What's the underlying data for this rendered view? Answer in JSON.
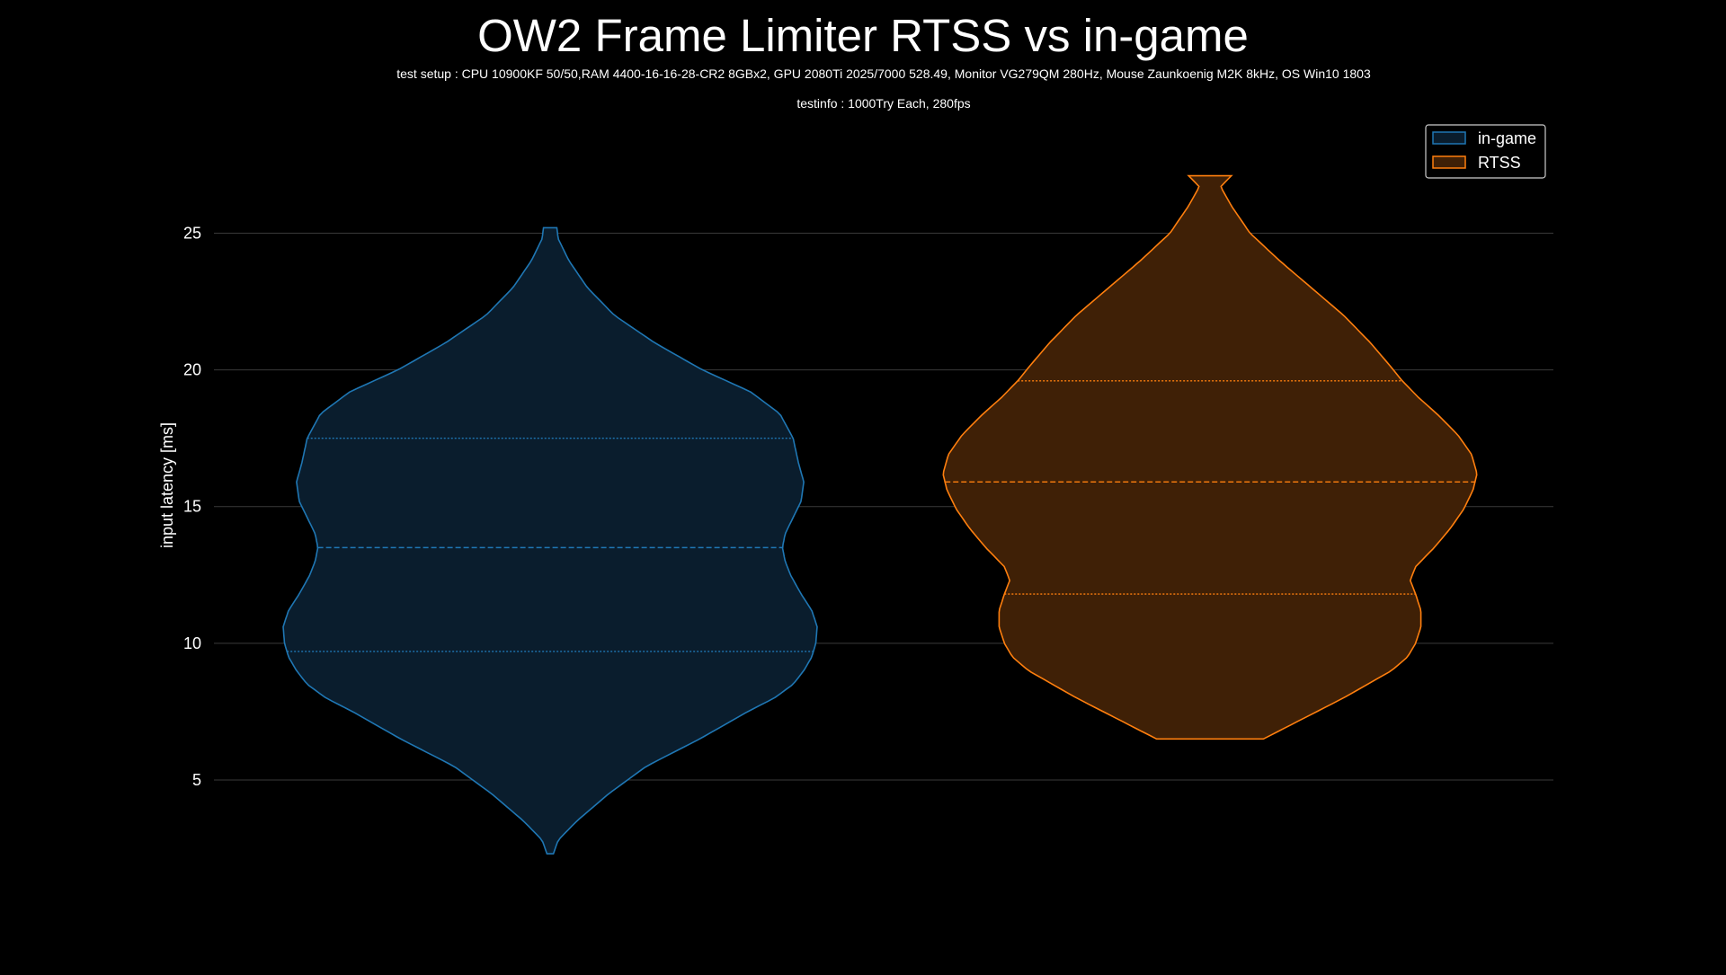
{
  "chart_data": {
    "type": "violin",
    "title": "OW2 Frame Limiter RTSS vs in-game",
    "subtitle_setup": "test setup : CPU 10900KF 50/50,RAM 4400-16-16-28-CR2 8GBx2, GPU 2080Ti 2025/7000 528.49, Monitor VG279QM 280Hz, Mouse Zaunkoenig M2K 8kHz, OS Win10 1803",
    "subtitle_info": "testinfo : 1000Try Each, 280fps",
    "ylabel": "input latency [ms]",
    "xlabel": "",
    "ylim": [
      0.66,
      30.9
    ],
    "yticks": [
      5,
      10,
      15,
      20,
      25
    ],
    "grid": "horizontal",
    "legend_position": "top-right",
    "series": [
      {
        "name": "in-game",
        "color": "#1f77b4",
        "fill": "#0a1d2d",
        "min": 2.3,
        "max": 25.2,
        "quartiles": [
          9.7,
          13.5,
          17.5
        ],
        "density": [
          [
            2.3,
            0.012
          ],
          [
            2.8,
            0.03
          ],
          [
            3.5,
            0.1
          ],
          [
            4.5,
            0.22
          ],
          [
            5.5,
            0.36
          ],
          [
            6.5,
            0.56
          ],
          [
            7.5,
            0.74
          ],
          [
            8.0,
            0.84
          ],
          [
            8.5,
            0.91
          ],
          [
            9.0,
            0.95
          ],
          [
            9.5,
            0.98
          ],
          [
            10.0,
            0.995
          ],
          [
            10.6,
            1.0
          ],
          [
            11.2,
            0.98
          ],
          [
            11.8,
            0.94
          ],
          [
            12.5,
            0.9
          ],
          [
            13.0,
            0.88
          ],
          [
            13.5,
            0.87
          ],
          [
            14.0,
            0.88
          ],
          [
            14.6,
            0.91
          ],
          [
            15.2,
            0.94
          ],
          [
            15.9,
            0.95
          ],
          [
            16.6,
            0.93
          ],
          [
            17.5,
            0.91
          ],
          [
            18.4,
            0.86
          ],
          [
            19.2,
            0.75
          ],
          [
            20.0,
            0.57
          ],
          [
            21.0,
            0.39
          ],
          [
            22.0,
            0.24
          ],
          [
            23.0,
            0.14
          ],
          [
            24.0,
            0.07
          ],
          [
            24.8,
            0.03
          ],
          [
            25.2,
            0.025
          ]
        ]
      },
      {
        "name": "RTSS",
        "color": "#ff7f0e",
        "fill": "#3f2006",
        "min": 6.5,
        "max": 27.1,
        "quartiles": [
          11.8,
          15.9,
          19.6
        ],
        "density": [
          [
            6.5,
            0.2
          ],
          [
            7.0,
            0.3
          ],
          [
            8.0,
            0.5
          ],
          [
            9.0,
            0.68
          ],
          [
            9.5,
            0.74
          ],
          [
            10.0,
            0.77
          ],
          [
            10.6,
            0.79
          ],
          [
            11.2,
            0.79
          ],
          [
            11.8,
            0.77
          ],
          [
            12.3,
            0.75
          ],
          [
            12.8,
            0.77
          ],
          [
            13.5,
            0.84
          ],
          [
            14.2,
            0.9
          ],
          [
            14.9,
            0.95
          ],
          [
            15.6,
            0.985
          ],
          [
            16.2,
            1.0
          ],
          [
            16.9,
            0.98
          ],
          [
            17.6,
            0.93
          ],
          [
            18.3,
            0.86
          ],
          [
            19.0,
            0.78
          ],
          [
            19.6,
            0.72
          ],
          [
            20.2,
            0.67
          ],
          [
            21.0,
            0.6
          ],
          [
            22.0,
            0.5
          ],
          [
            23.0,
            0.38
          ],
          [
            24.0,
            0.26
          ],
          [
            25.0,
            0.15
          ],
          [
            26.0,
            0.08
          ],
          [
            26.7,
            0.04
          ],
          [
            27.1,
            0.08
          ]
        ]
      }
    ]
  }
}
